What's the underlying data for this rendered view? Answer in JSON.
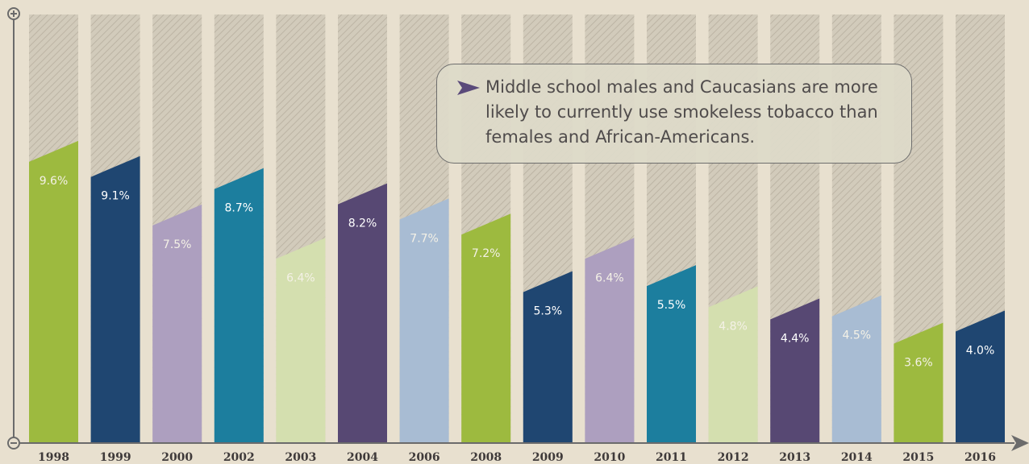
{
  "chart_data": {
    "type": "bar",
    "title": "",
    "xlabel": "",
    "ylabel": "",
    "ylim": [
      0,
      13
    ],
    "categories": [
      "1998",
      "1999",
      "2000",
      "2002",
      "2003",
      "2004",
      "2006",
      "2008",
      "2009",
      "2010",
      "2011",
      "2012",
      "2013",
      "2014",
      "2015",
      "2016"
    ],
    "values": [
      9.6,
      9.1,
      7.5,
      8.7,
      6.4,
      8.2,
      7.7,
      7.2,
      5.3,
      6.4,
      5.5,
      4.8,
      4.4,
      4.5,
      3.6,
      4.0
    ],
    "data_labels": [
      "9.6%",
      "9.1%",
      "7.5%",
      "8.7%",
      "6.4%",
      "8.2%",
      "7.7%",
      "7.2%",
      "5.3%",
      "6.4%",
      "5.5%",
      "4.8%",
      "4.4%",
      "4.5%",
      "3.6%",
      "4.0%"
    ],
    "colors": [
      "#9dba3f",
      "#1f4671",
      "#ad9fbf",
      "#1c7e9e",
      "#d4dfaf",
      "#574873",
      "#a8bcd3",
      "#9dba3f",
      "#1f4671",
      "#ad9fbf",
      "#1c7e9e",
      "#d4dfaf",
      "#574873",
      "#a8bcd3",
      "#9dba3f",
      "#1f4671"
    ],
    "bar_background_color": "#d2cbbb",
    "grid": false,
    "legend": "none"
  },
  "callout": {
    "icon": "play-arrow-icon",
    "text": "Middle school males and Caucasians are more likely to currently use smokeless tobacco than females and African-Americans."
  },
  "axis_icons": {
    "top": "plus-circle-icon",
    "bottom": "minus-circle-icon",
    "right": "arrow-right-icon"
  }
}
